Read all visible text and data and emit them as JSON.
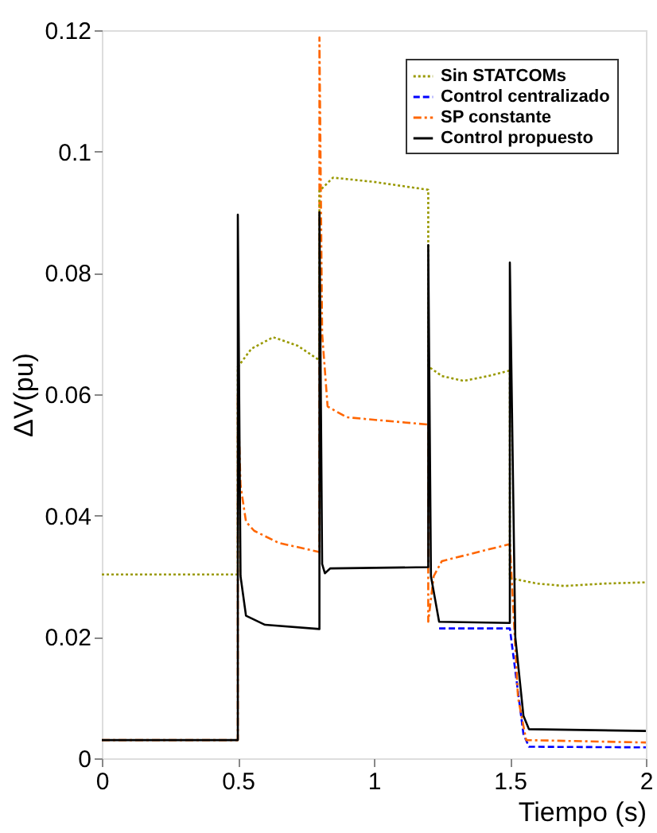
{
  "chart_data": {
    "type": "line",
    "xlabel": "Tiempo (s)",
    "ylabel": "ΔV(pu)",
    "xlim": [
      0,
      2
    ],
    "xticks": [
      0,
      0.5,
      1,
      1.5,
      2
    ],
    "ylim": [
      0,
      0.12
    ],
    "yticks": [
      0,
      0.02,
      0.04,
      0.06,
      0.08,
      0.1,
      0.12
    ],
    "grid": false,
    "legend": "top right",
    "series": [
      {
        "name": "Sin STATCOMs",
        "color": "#999900",
        "line_style": "dotted",
        "x": [
          0,
          0.5,
          0.5,
          0.55,
          0.63,
          0.72,
          0.8,
          0.8,
          0.85,
          1.0,
          1.2,
          1.2,
          1.25,
          1.33,
          1.42,
          1.5,
          1.5,
          1.6,
          1.7,
          1.85,
          2
        ],
        "values": [
          0.0303,
          0.0303,
          0.0645,
          0.0675,
          0.0694,
          0.068,
          0.0656,
          0.0935,
          0.0957,
          0.095,
          0.0937,
          0.0646,
          0.063,
          0.0622,
          0.063,
          0.0639,
          0.0297,
          0.0288,
          0.0284,
          0.0288,
          0.029
        ]
      },
      {
        "name": "Control centralizado",
        "color": "#0000ff",
        "line_style": "dashed",
        "x": [
          1.24,
          1.5,
          1.55,
          1.57,
          2
        ],
        "values": [
          0.0214,
          0.0214,
          0.004,
          0.0019,
          0.0018
        ]
      },
      {
        "name": "SP constante",
        "color": "#ff6600",
        "line_style": "dashdot",
        "x": [
          0,
          0.5,
          0.5,
          0.51,
          0.53,
          0.56,
          0.65,
          0.8,
          0.8,
          0.81,
          0.83,
          0.9,
          1.2,
          1.2,
          1.22,
          1.25,
          1.5,
          1.53,
          1.56,
          2
        ],
        "values": [
          0.003,
          0.003,
          0.06,
          0.045,
          0.039,
          0.0375,
          0.0355,
          0.034,
          0.1188,
          0.07,
          0.058,
          0.0562,
          0.055,
          0.0225,
          0.03,
          0.0325,
          0.0353,
          0.01,
          0.003,
          0.0026
        ]
      },
      {
        "name": "Control propuesto",
        "color": "#000000",
        "line_style": "solid",
        "x": [
          0,
          0.5,
          0.5,
          0.51,
          0.53,
          0.6,
          0.8,
          0.8,
          0.81,
          0.82,
          0.84,
          1.2,
          1.2,
          1.21,
          1.24,
          1.5,
          1.5,
          1.52,
          1.55,
          1.57,
          2
        ],
        "values": [
          0.003,
          0.003,
          0.0896,
          0.03,
          0.0235,
          0.022,
          0.0213,
          0.09,
          0.032,
          0.0305,
          0.0313,
          0.0315,
          0.0846,
          0.03,
          0.0225,
          0.0223,
          0.0817,
          0.02,
          0.007,
          0.0048,
          0.0045
        ]
      }
    ]
  }
}
